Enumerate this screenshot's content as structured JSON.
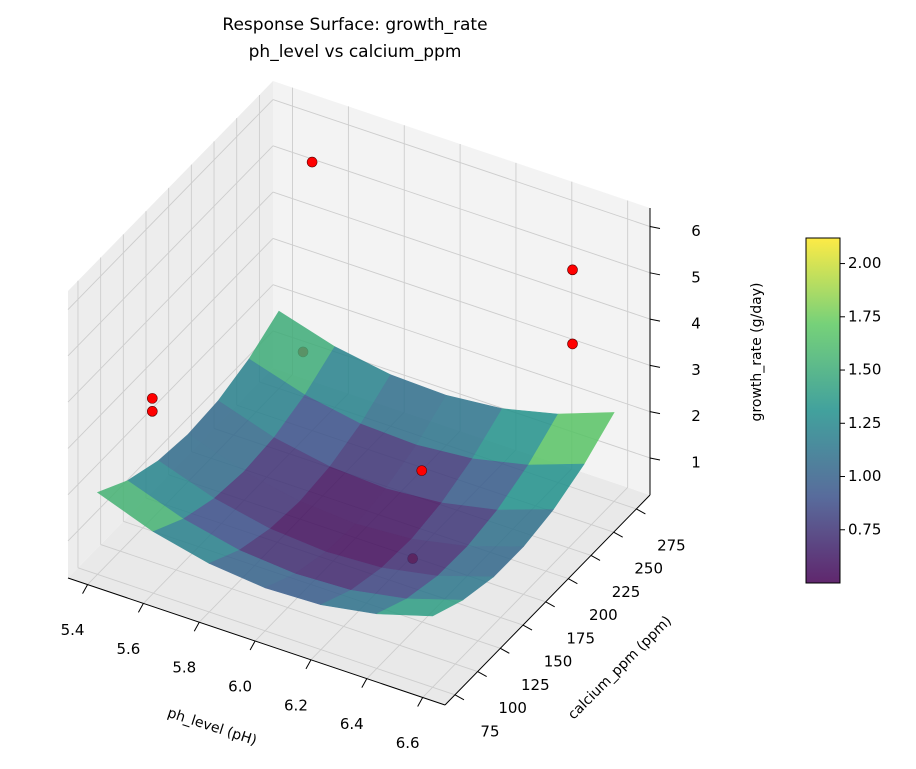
{
  "chart_data": {
    "type": "surface3d",
    "title": "Response Surface: growth_rate",
    "subtitle": "ph_level vs calcium_ppm",
    "xlabel": "ph_level (pH)",
    "ylabel": "calcium_ppm (ppm)",
    "zlabel": "growth_rate (g/day)",
    "xlim": [
      5.33,
      6.68
    ],
    "ylim": [
      64,
      290
    ],
    "zlim": [
      0.2,
      6.4
    ],
    "xticks": [
      5.4,
      5.6,
      5.8,
      {
        "value": 6,
        "label": "6.0"
      },
      6.2,
      6.4,
      6.6
    ],
    "yticks": [
      75,
      100,
      125,
      150,
      175,
      200,
      225,
      250,
      275
    ],
    "zticks": [
      1,
      2,
      3,
      4,
      5,
      6
    ],
    "grid": true,
    "colormap": "viridis",
    "clim": [
      0.5,
      2.12
    ],
    "cticks": [
      {
        "value": 0.75,
        "label": "0.75"
      },
      {
        "value": 1,
        "label": "1.00"
      },
      {
        "value": 1.25,
        "label": "1.25"
      },
      {
        "value": 1.5,
        "label": "1.50"
      },
      {
        "value": 1.75,
        "label": "1.75"
      },
      {
        "value": 2,
        "label": "2.00"
      }
    ],
    "surface": {
      "alpha": 0.85,
      "x": [
        5.4,
        5.6,
        5.8,
        6.0,
        6.2,
        6.4,
        6.6
      ],
      "y": [
        75,
        108,
        142,
        175,
        208,
        242,
        275
      ],
      "z": [
        [
          1.97,
          1.56,
          1.31,
          1.22,
          1.28,
          1.5,
          1.87
        ],
        [
          1.53,
          1.14,
          0.9,
          0.82,
          0.89,
          1.13,
          1.51
        ],
        [
          1.25,
          0.87,
          0.65,
          0.58,
          0.67,
          0.91,
          1.31
        ],
        [
          1.13,
          0.77,
          0.56,
          0.5,
          0.6,
          0.86,
          1.27
        ],
        [
          1.17,
          0.82,
          0.62,
          0.58,
          0.7,
          0.97,
          1.39
        ],
        [
          1.38,
          1.04,
          0.85,
          0.83,
          0.95,
          1.24,
          1.68
        ],
        [
          1.74,
          1.42,
          1.24,
          1.23,
          1.37,
          1.67,
          2.12
        ]
      ]
    },
    "points": {
      "color": "#ff0000",
      "x": [
        5.6,
        6.5,
        6.5,
        5.45,
        5.45,
        5.6,
        6.22,
        6.22
      ],
      "y": [
        250,
        260,
        260,
        120,
        120,
        240,
        180,
        170
      ],
      "z": [
        6.0,
        5.3,
        3.7,
        3.2,
        2.92,
        2.1,
        2.0,
        0.3
      ]
    }
  }
}
